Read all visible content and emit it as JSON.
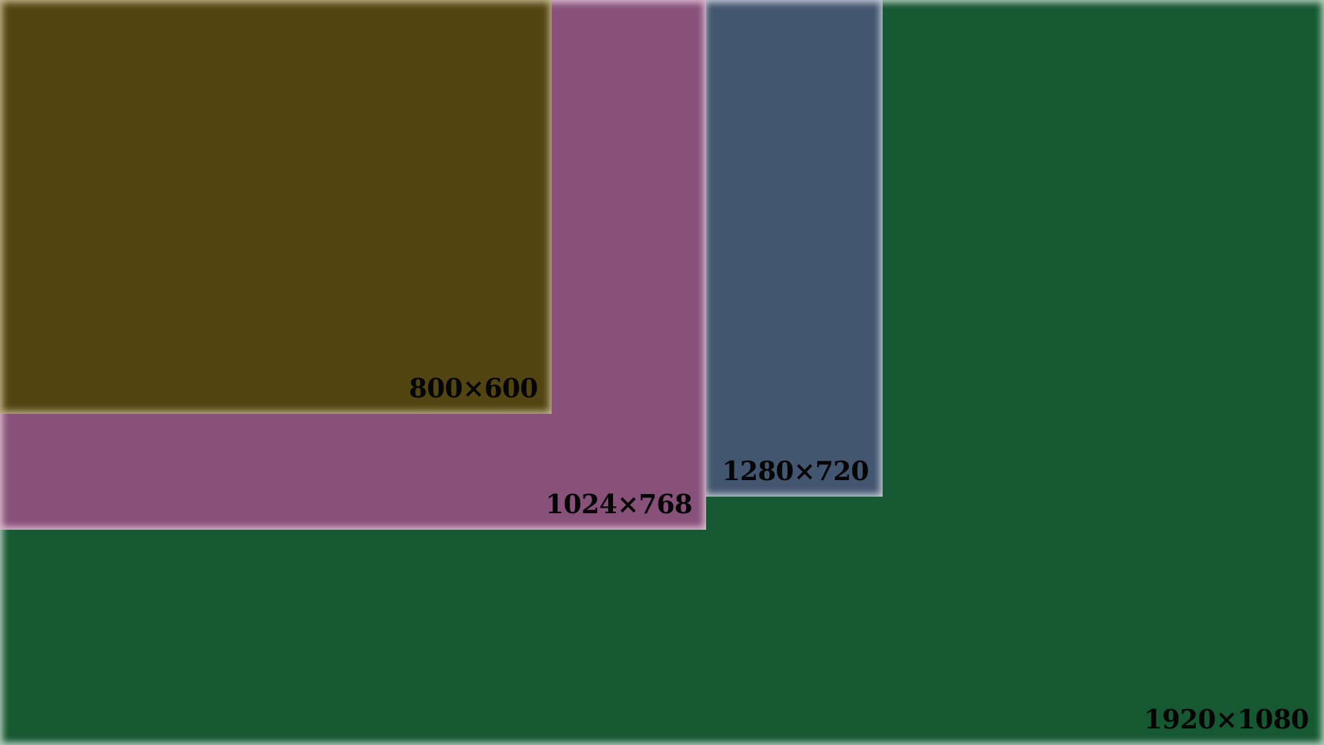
{
  "regions": {
    "r1920": {
      "label": "1920×1080",
      "color": "#155832"
    },
    "r1280": {
      "label": "1280×720",
      "color": "#43566f"
    },
    "r1024": {
      "label": "1024×768",
      "color": "#87517a"
    },
    "r800": {
      "label": "800×600",
      "color": "#524511"
    }
  }
}
